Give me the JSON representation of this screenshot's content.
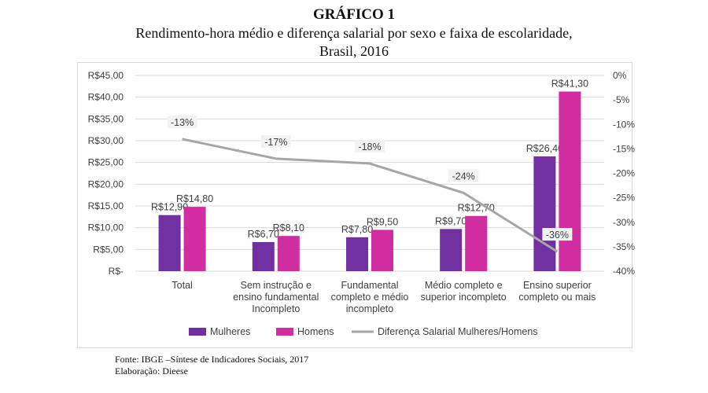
{
  "header": {
    "title": "GRÁFICO 1",
    "subtitle_line1": "Rendimento-hora médio e diferença salarial por sexo e faixa de escolaridade,",
    "subtitle_line2": "Brasil, 2016"
  },
  "footer": {
    "source": "Fonte: IBGE –Síntese de Indicadores Sociais, 2017",
    "credit": "Elaboração: Dieese"
  },
  "colors": {
    "mulheres": "#7030a0",
    "homens": "#d02da0",
    "line": "#a6a6a6",
    "grid": "#d9d9d9",
    "label_bg": "#f2f2f2"
  },
  "chart_data": {
    "type": "bar",
    "categories": [
      [
        "Total"
      ],
      [
        "Sem instrução e",
        "ensino fundamental",
        "Incompleto"
      ],
      [
        "Fundamental",
        "completo e médio",
        "incompleto"
      ],
      [
        "Médio completo e",
        "superior incompleto"
      ],
      [
        "Ensino superior",
        "completo ou mais"
      ]
    ],
    "series": [
      {
        "name": "Mulheres",
        "axis": "left",
        "values": [
          12.9,
          6.7,
          7.8,
          9.7,
          26.4
        ],
        "labels": [
          "R$12,90",
          "R$6,70",
          "R$7,80",
          "R$9,70",
          "R$26,40"
        ]
      },
      {
        "name": "Homens",
        "axis": "left",
        "values": [
          14.8,
          8.1,
          9.5,
          12.7,
          41.3
        ],
        "labels": [
          "R$14,80",
          "R$8,10",
          "R$9,50",
          "R$12,70",
          "R$41,30"
        ]
      },
      {
        "name": "Diferença Salarial Mulheres/Homens",
        "type": "line",
        "axis": "right",
        "values": [
          -13,
          -17,
          -18,
          -24,
          -36
        ],
        "labels": [
          "-13%",
          "-17%",
          "-18%",
          "-24%",
          "-36%"
        ]
      }
    ],
    "y_left": {
      "min": 0,
      "max": 45,
      "ticks": [
        "R$-",
        "R$5,00",
        "R$10,00",
        "R$15,00",
        "R$20,00",
        "R$25,00",
        "R$30,00",
        "R$35,00",
        "R$40,00",
        "R$45,00"
      ]
    },
    "y_right": {
      "min": -40,
      "max": 0,
      "ticks": [
        "-40%",
        "-35%",
        "-30%",
        "-25%",
        "-20%",
        "-15%",
        "-10%",
        "-5%",
        "0%"
      ]
    },
    "grid": true,
    "legend": "bottom"
  }
}
